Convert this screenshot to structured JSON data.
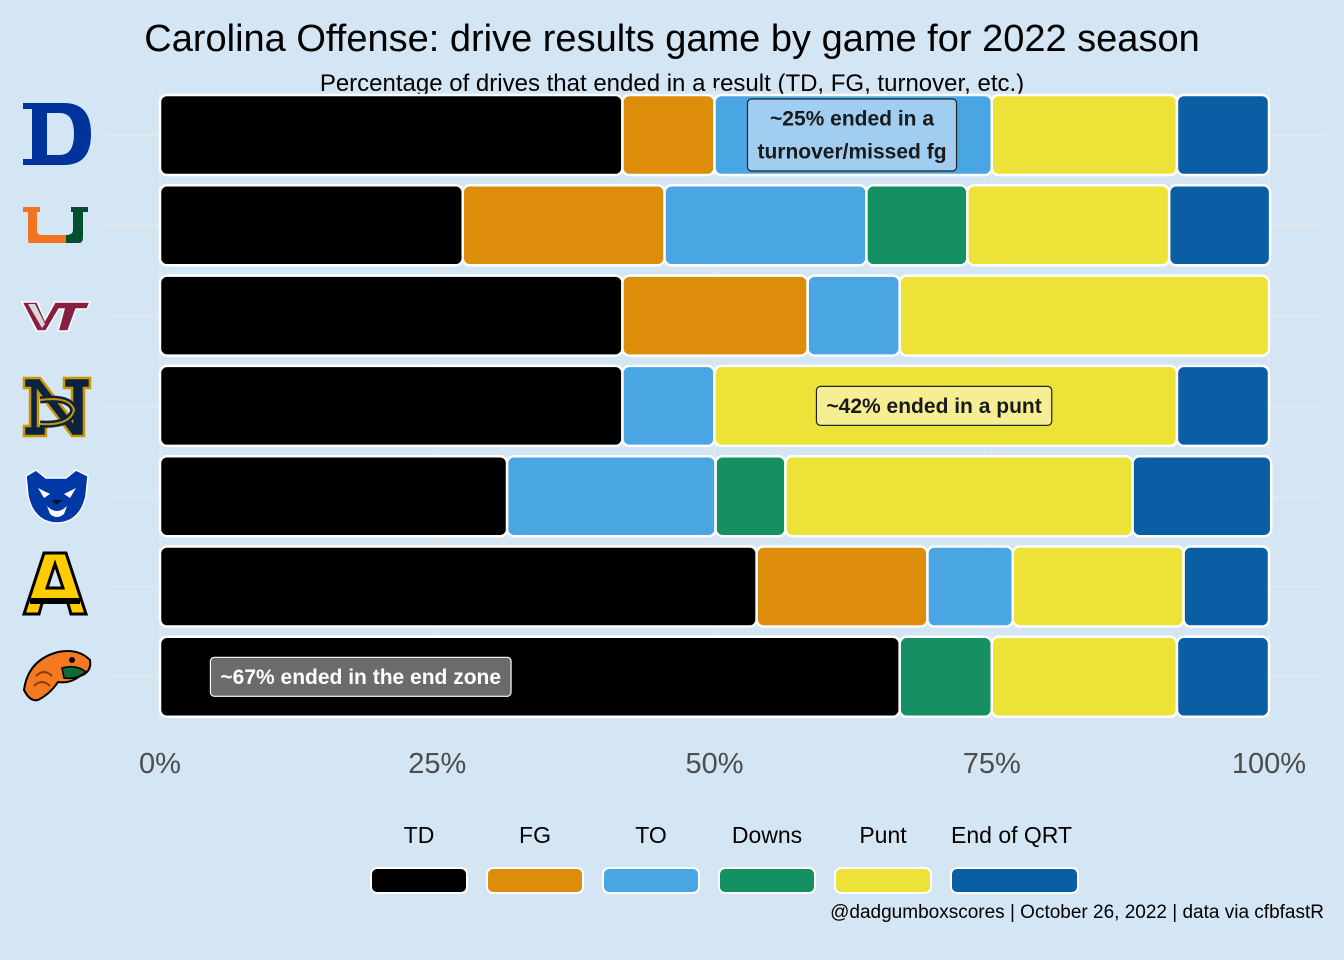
{
  "chart_data": {
    "type": "bar",
    "orientation": "horizontal-stacked-percent",
    "title": "Carolina Offense: drive results game by game for 2022 season",
    "subtitle": "Percentage of drives that ended in a result (TD, FG, turnover, etc.)",
    "caption": "@dadgumboxscores | October 26, 2022 | data via cfbfastR",
    "xlim": [
      0,
      100
    ],
    "x_ticks": [
      "0%",
      "25%",
      "50%",
      "75%",
      "100%"
    ],
    "legend_position": "bottom",
    "categories": [
      "Duke",
      "Miami",
      "Virginia Tech",
      "Notre Dame",
      "Georgia State",
      "Appalachian State",
      "Florida A&M"
    ],
    "series": [
      {
        "name": "TD",
        "color": "#000000",
        "values": [
          41.7,
          27.3,
          41.7,
          41.7,
          31.3,
          53.8,
          66.7
        ]
      },
      {
        "name": "FG",
        "color": "#de8d0a",
        "values": [
          8.3,
          18.2,
          16.7,
          0,
          0,
          15.4,
          0
        ]
      },
      {
        "name": "TO",
        "color": "#4aa5e3",
        "values": [
          25.0,
          18.2,
          8.3,
          8.3,
          18.8,
          7.7,
          0
        ]
      },
      {
        "name": "Downs",
        "color": "#159063",
        "values": [
          0,
          9.1,
          0,
          0,
          6.3,
          0,
          8.3
        ]
      },
      {
        "name": "Punt",
        "color": "#ede238",
        "values": [
          16.7,
          18.2,
          33.3,
          41.7,
          31.3,
          15.4,
          16.7
        ]
      },
      {
        "name": "End of QRT",
        "color": "#0a5ea3",
        "values": [
          8.3,
          9.1,
          0,
          8.3,
          12.5,
          7.7,
          8.3
        ]
      }
    ],
    "annotations": [
      {
        "text": "~25% ended in a turnover/missed fg",
        "lines": [
          "~25% ended in a",
          "turnover/missed fg"
        ],
        "row": 0,
        "x": 62.4,
        "fill": "#a0cdf0",
        "color": "#1a1a1a"
      },
      {
        "text": "~42% ended in a punt",
        "lines": [
          "~42% ended in a punt"
        ],
        "row": 3,
        "x": 69.8,
        "fill": "#f5ee92",
        "color": "#1a1a1a"
      },
      {
        "text": "~67% ended in the end zone",
        "lines": [
          "~67% ended in the end zone"
        ],
        "row": 6,
        "x": 18.1,
        "fill": "#6b6b6b",
        "color": "#ffffff"
      }
    ]
  },
  "logos": [
    {
      "team": "Duke",
      "icon": "duke-d-logo",
      "color": "#00339b"
    },
    {
      "team": "Miami",
      "icon": "miami-u-logo",
      "color": "#f47321"
    },
    {
      "team": "Virginia Tech",
      "icon": "vt-logo",
      "color": "#861f41"
    },
    {
      "team": "Notre Dame",
      "icon": "nd-logo",
      "color": "#0c2340"
    },
    {
      "team": "Georgia State",
      "icon": "panther-logo",
      "color": "#0039a6"
    },
    {
      "team": "Appalachian State",
      "icon": "app-state-a-logo",
      "color": "#ffcc00"
    },
    {
      "team": "Florida A&M",
      "icon": "rattler-logo",
      "color": "#f47920"
    }
  ]
}
